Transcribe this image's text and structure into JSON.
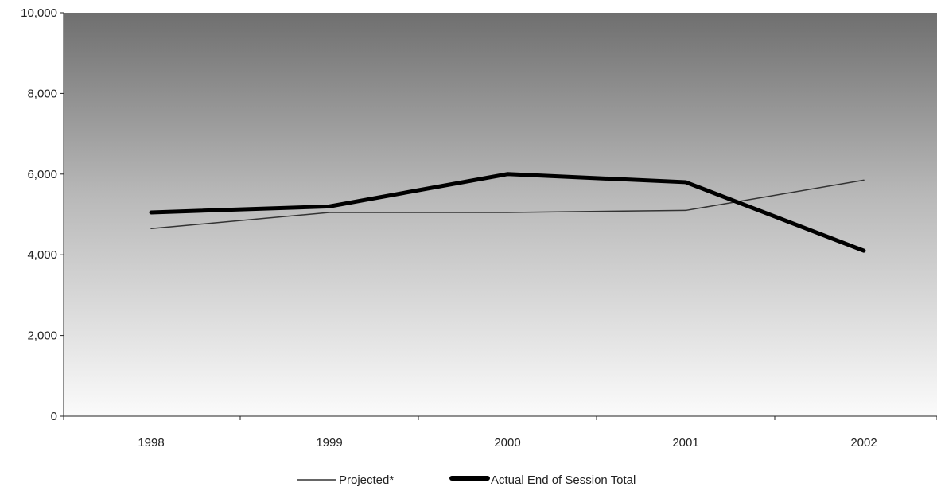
{
  "chart_data": {
    "type": "line",
    "categories": [
      "1998",
      "1999",
      "2000",
      "2001",
      "2002"
    ],
    "series": [
      {
        "name": "Projected*",
        "values": [
          4650,
          5050,
          5050,
          5100,
          5850
        ],
        "color": "#333333"
      },
      {
        "name": "Actual End of Session Total",
        "values": [
          5050,
          5200,
          6000,
          5800,
          4100
        ],
        "color": "#000000"
      }
    ],
    "y_ticks": [
      "0",
      "2,000",
      "4,000",
      "6,000",
      "8,000",
      "10,000"
    ],
    "ylim": [
      0,
      10000
    ],
    "grid": false,
    "legend_position": "bottom-center",
    "plot_background": "gradient dark-gray to white (top to bottom)"
  }
}
